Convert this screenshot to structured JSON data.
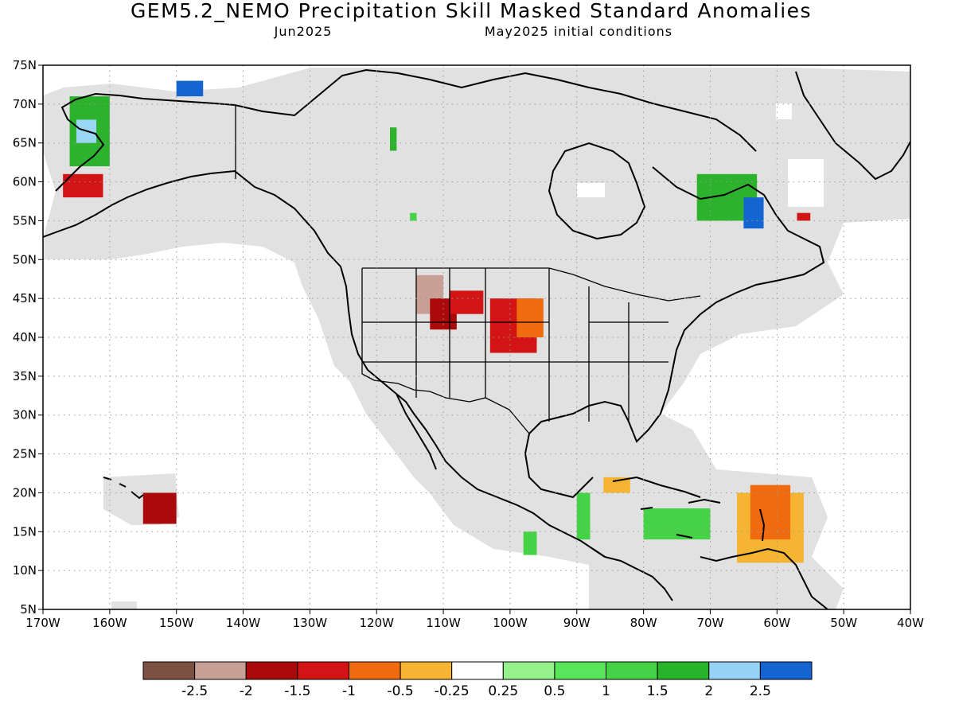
{
  "title": "GEM5.2_NEMO Precipitation Skill Masked Standard Anomalies",
  "subtitle_left": "Jun2025",
  "subtitle_right": "May2025 initial conditions",
  "map": {
    "lon_range": [
      -170,
      -40
    ],
    "lat_range": [
      5,
      75
    ],
    "lon_ticks": [
      "170W",
      "160W",
      "150W",
      "140W",
      "130W",
      "120W",
      "110W",
      "100W",
      "90W",
      "80W",
      "70W",
      "60W",
      "50W",
      "40W"
    ],
    "lat_ticks": [
      "5N",
      "10N",
      "15N",
      "20N",
      "25N",
      "30N",
      "35N",
      "40N",
      "45N",
      "50N",
      "55N",
      "60N",
      "65N",
      "70N",
      "75N"
    ],
    "gridlines": true,
    "colors": {
      "land_fill": "#e1e1e1",
      "coastline": "#000000",
      "border": "#000000",
      "grid": "#999999"
    },
    "anomaly_regions": [
      {
        "name": "western-alaska",
        "color": "#2db22d",
        "lon": [
          -166,
          -160
        ],
        "lat": [
          62,
          71
        ]
      },
      {
        "name": "western-alaska-light",
        "color": "#99d6f2",
        "lon": [
          -165,
          -162
        ],
        "lat": [
          65,
          68
        ]
      },
      {
        "name": "western-alaska-low",
        "color": "#d21414",
        "lon": [
          -167,
          -161
        ],
        "lat": [
          58,
          61
        ]
      },
      {
        "name": "bering-blue",
        "color": "#1565d1",
        "lon": [
          -150,
          -146
        ],
        "lat": [
          71,
          73
        ]
      },
      {
        "name": "hudson-green",
        "color": "#2db22d",
        "lon": [
          -118,
          -117
        ],
        "lat": [
          64,
          67
        ]
      },
      {
        "name": "hudson-small",
        "color": "#46d246",
        "lon": [
          -115,
          -114
        ],
        "lat": [
          55,
          56
        ]
      },
      {
        "name": "labrador-green",
        "color": "#2db22d",
        "lon": [
          -72,
          -63
        ],
        "lat": [
          55,
          61
        ]
      },
      {
        "name": "labrador-blue",
        "color": "#1565d1",
        "lon": [
          -65,
          -62
        ],
        "lat": [
          54,
          58
        ]
      },
      {
        "name": "newfoundland",
        "color": "#d21414",
        "lon": [
          -57,
          -55
        ],
        "lat": [
          55,
          56
        ]
      },
      {
        "name": "idaho-brown",
        "color": "#c8a096",
        "lon": [
          -114,
          -110
        ],
        "lat": [
          43,
          48
        ]
      },
      {
        "name": "idaho-darkred",
        "color": "#aa0a0a",
        "lon": [
          -112,
          -108
        ],
        "lat": [
          41,
          45
        ]
      },
      {
        "name": "wyoming-red",
        "color": "#d21414",
        "lon": [
          -109,
          -104
        ],
        "lat": [
          43,
          46
        ]
      },
      {
        "name": "plains-red",
        "color": "#d21414",
        "lon": [
          -103,
          -96
        ],
        "lat": [
          38,
          45
        ]
      },
      {
        "name": "plains-orange",
        "color": "#f06a0f",
        "lon": [
          -99,
          -95
        ],
        "lat": [
          40,
          45
        ]
      },
      {
        "name": "hawaii-red",
        "color": "#aa0a0a",
        "lon": [
          -155,
          -150
        ],
        "lat": [
          16,
          20
        ]
      },
      {
        "name": "caribbean-green",
        "color": "#46d246",
        "lon": [
          -80,
          -70
        ],
        "lat": [
          14,
          18
        ]
      },
      {
        "name": "caribbean-orange",
        "color": "#f5b432",
        "lon": [
          -66,
          -56
        ],
        "lat": [
          11,
          20
        ]
      },
      {
        "name": "antilles-red",
        "color": "#f06a0f",
        "lon": [
          -64,
          -58
        ],
        "lat": [
          14,
          21
        ]
      },
      {
        "name": "cuba-orange",
        "color": "#f5b432",
        "lon": [
          -86,
          -82
        ],
        "lat": [
          20,
          22
        ]
      },
      {
        "name": "mexico-green",
        "color": "#46d246",
        "lon": [
          -90,
          -88
        ],
        "lat": [
          14,
          20
        ]
      },
      {
        "name": "central-green",
        "color": "#46d246",
        "lon": [
          -98,
          -96
        ],
        "lat": [
          12,
          15
        ]
      }
    ]
  },
  "colorbar": {
    "colors": [
      "#7d5044",
      "#c8a096",
      "#aa0a0a",
      "#d21414",
      "#f06a0f",
      "#f5b432",
      "#ffffff",
      "#96f08c",
      "#5ae65a",
      "#46d246",
      "#28b428",
      "#96d2f5",
      "#1464d2"
    ],
    "labels": [
      "-2.5",
      "-2",
      "-1.5",
      "-1",
      "-0.5",
      "-0.25",
      "0.25",
      "0.5",
      "1",
      "1.5",
      "2",
      "2.5"
    ]
  }
}
